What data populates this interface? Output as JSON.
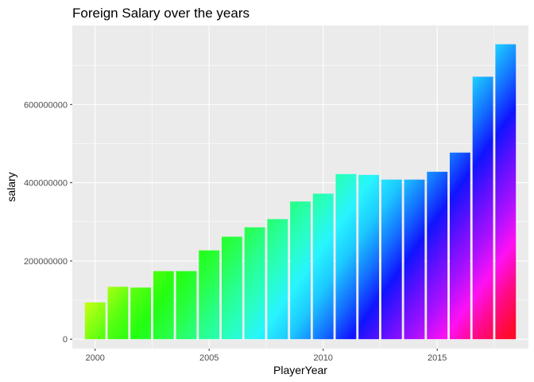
{
  "chart_data": {
    "type": "bar",
    "title": "Foreign Salary over the years",
    "xlabel": "PlayerYear",
    "ylabel": "salary",
    "x": [
      2000,
      2001,
      2002,
      2003,
      2004,
      2005,
      2006,
      2007,
      2008,
      2009,
      2010,
      2011,
      2012,
      2013,
      2014,
      2015,
      2016,
      2017,
      2018
    ],
    "values": [
      94000000,
      134000000,
      132000000,
      174000000,
      174000000,
      227000000,
      262000000,
      286000000,
      307000000,
      352000000,
      372000000,
      422000000,
      420000000,
      408000000,
      408000000,
      428000000,
      477000000,
      671000000,
      754000000
    ],
    "xlim": [
      1999.0,
      2019.0
    ],
    "ylim": [
      -24000000,
      802000000
    ],
    "x_ticks": [
      2000,
      2005,
      2010,
      2015
    ],
    "x_tick_labels": [
      "2000",
      "2005",
      "2010",
      "2015"
    ],
    "y_ticks": [
      0,
      200000000,
      400000000,
      600000000
    ],
    "y_tick_labels": [
      "0",
      "200000000",
      "400000000",
      "600000000"
    ],
    "grid": true,
    "legend": "none",
    "colors": [
      "#FF0A0A",
      "#FF2A14",
      "#FF4410",
      "#FF8C10",
      "#FFBD14",
      "#FFFF10",
      "#A8FF14",
      "#54FF10",
      "#22FF10",
      "#28FF44",
      "#28FF88",
      "#28FFC0",
      "#28F4FF",
      "#1CC8FF",
      "#1474FF",
      "#1014FF",
      "#6010FF",
      "#A810FF",
      "#FF10F4",
      "#FF0A84",
      "#FF0A2C"
    ],
    "panel_background": "#EBEBEB",
    "grid_color": "#FFFFFF"
  }
}
